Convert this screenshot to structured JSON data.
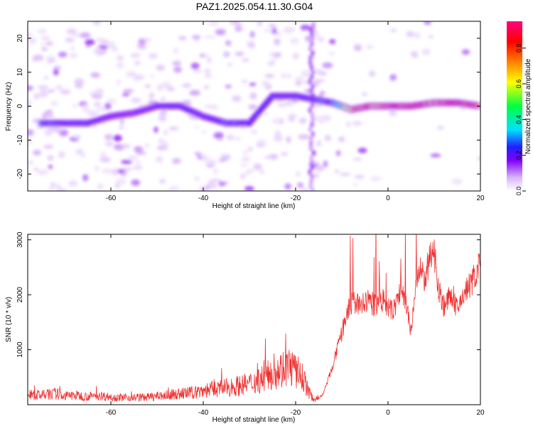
{
  "chart_data": [
    {
      "type": "heatmap",
      "title": "PAZ1.2025.054.11.30.G04",
      "xlabel": "Height of straight line (km)",
      "ylabel": "Frequency (Hz)",
      "xlim": [
        -78,
        20
      ],
      "ylim": [
        -25,
        25
      ],
      "xticks": [
        -60,
        -40,
        -20,
        0,
        20
      ],
      "yticks": [
        -20,
        -10,
        0,
        10,
        20
      ],
      "colorbar": {
        "label": "Normalized spectral amplitude",
        "range": [
          0,
          0.95
        ],
        "ticks": [
          "0.0",
          "0.2",
          "0.4",
          "0.6",
          "0.8"
        ],
        "colors": [
          "#ffffff",
          "#d8b4f8",
          "#8000ff",
          "#2020ff",
          "#00e0ff",
          "#00ff40",
          "#ffff00",
          "#ff8000",
          "#ff0000",
          "#ff0080"
        ]
      },
      "ridge": [
        {
          "x": -75,
          "f": -5,
          "amp": 0.35
        },
        {
          "x": -70,
          "f": -5,
          "amp": 0.3
        },
        {
          "x": -65,
          "f": -5,
          "amp": 0.3
        },
        {
          "x": -60,
          "f": -3,
          "amp": 0.2
        },
        {
          "x": -55,
          "f": -2,
          "amp": 0.2
        },
        {
          "x": -50,
          "f": 0,
          "amp": 0.25
        },
        {
          "x": -45,
          "f": 0,
          "amp": 0.3
        },
        {
          "x": -40,
          "f": -3,
          "amp": 0.25
        },
        {
          "x": -35,
          "f": -5,
          "amp": 0.35
        },
        {
          "x": -30,
          "f": -5,
          "amp": 0.3
        },
        {
          "x": -25,
          "f": 3,
          "amp": 0.3
        },
        {
          "x": -20,
          "f": 3,
          "amp": 0.3
        },
        {
          "x": -12,
          "f": 1,
          "amp": 0.35
        },
        {
          "x": -8,
          "f": -1,
          "amp": 0.7
        },
        {
          "x": -4,
          "f": 0,
          "amp": 0.75
        },
        {
          "x": 0,
          "f": 0,
          "amp": 0.8
        },
        {
          "x": 5,
          "f": 0,
          "amp": 0.8
        },
        {
          "x": 10,
          "f": 1,
          "amp": 0.75
        },
        {
          "x": 15,
          "f": 1,
          "amp": 0.8
        },
        {
          "x": 20,
          "f": 0,
          "amp": 0.75
        }
      ]
    },
    {
      "type": "line",
      "xlabel": "Height of straight line (km)",
      "ylabel": "SNR (10 * v/v)",
      "xlim": [
        -78,
        20
      ],
      "ylim": [
        0,
        3100
      ],
      "xticks": [
        -60,
        -40,
        -20,
        0,
        20
      ],
      "yticks": [
        1000,
        2000,
        3000
      ],
      "color": "#f03030",
      "series": [
        {
          "x": [
            -78,
            -75,
            -72,
            -70,
            -68,
            -65,
            -62,
            -60,
            -58,
            -55,
            -52,
            -50,
            -48,
            -45,
            -42,
            -40,
            -38,
            -35,
            -33,
            -30,
            -28,
            -26,
            -25,
            -24,
            -23,
            -22,
            -21,
            -20,
            -19,
            -18,
            -17,
            -16,
            -15,
            -14,
            -13,
            -12,
            -11,
            -10,
            -9,
            -8,
            -7,
            -6,
            -5,
            -4,
            -3,
            -2,
            -1,
            0,
            1,
            2,
            3,
            4,
            5,
            6,
            7,
            8,
            9,
            10,
            11,
            12,
            13,
            14,
            15,
            16,
            17,
            18,
            19,
            20
          ],
          "y": [
            180,
            170,
            200,
            160,
            170,
            150,
            160,
            140,
            130,
            130,
            140,
            150,
            170,
            200,
            220,
            260,
            280,
            310,
            340,
            380,
            450,
            520,
            600,
            620,
            650,
            680,
            700,
            600,
            550,
            420,
            200,
            100,
            120,
            200,
            450,
            700,
            1000,
            1300,
            1650,
            1800,
            1850,
            1800,
            1850,
            1900,
            1800,
            1850,
            1900,
            1750,
            1700,
            1900,
            2100,
            1800,
            1300,
            2200,
            2400,
            2300,
            2600,
            2800,
            2100,
            1800,
            1900,
            2000,
            1700,
            1950,
            2100,
            2200,
            2400,
            2550
          ]
        }
      ]
    }
  ]
}
